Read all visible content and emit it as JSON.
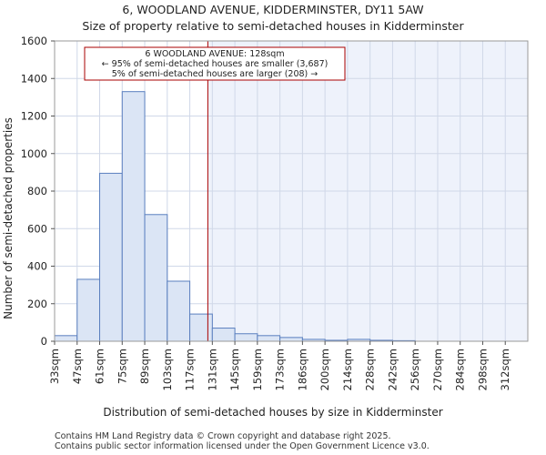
{
  "chart_data": {
    "type": "bar",
    "title": "6, WOODLAND AVENUE, KIDDERMINSTER, DY11 5AW",
    "subtitle": "Size of property relative to semi-detached houses in Kidderminster",
    "xlabel": "Distribution of semi-detached houses by size in Kidderminster",
    "ylabel": "Number of semi-detached properties",
    "ylim": [
      0,
      1600
    ],
    "yticks": [
      0,
      200,
      400,
      600,
      800,
      1000,
      1200,
      1400,
      1600
    ],
    "categories": [
      "33sqm",
      "47sqm",
      "61sqm",
      "75sqm",
      "89sqm",
      "103sqm",
      "117sqm",
      "131sqm",
      "145sqm",
      "159sqm",
      "173sqm",
      "186sqm",
      "200sqm",
      "214sqm",
      "228sqm",
      "242sqm",
      "256sqm",
      "270sqm",
      "284sqm",
      "298sqm",
      "312sqm"
    ],
    "values": [
      30,
      330,
      895,
      1330,
      675,
      320,
      145,
      70,
      40,
      30,
      20,
      10,
      5,
      10,
      5,
      3,
      0,
      0,
      0,
      0,
      0
    ],
    "property_marker": {
      "value_sqm": 128,
      "bin_position": 6.8,
      "color": "#aa0000"
    },
    "annotation": {
      "line1": "6 WOODLAND AVENUE: 128sqm",
      "line2": "← 95% of semi-detached houses are smaller (3,687)",
      "line3": "5% of semi-detached houses are larger (208) →"
    },
    "colors": {
      "bar_fill": "#dbe5f5",
      "bar_stroke": "#5a7fbf",
      "right_shade": "#eef2fb",
      "grid": "#d0d8e8"
    }
  },
  "footer": {
    "line1": "Contains HM Land Registry data © Crown copyright and database right 2025.",
    "line2": "Contains public sector information licensed under the Open Government Licence v3.0."
  }
}
